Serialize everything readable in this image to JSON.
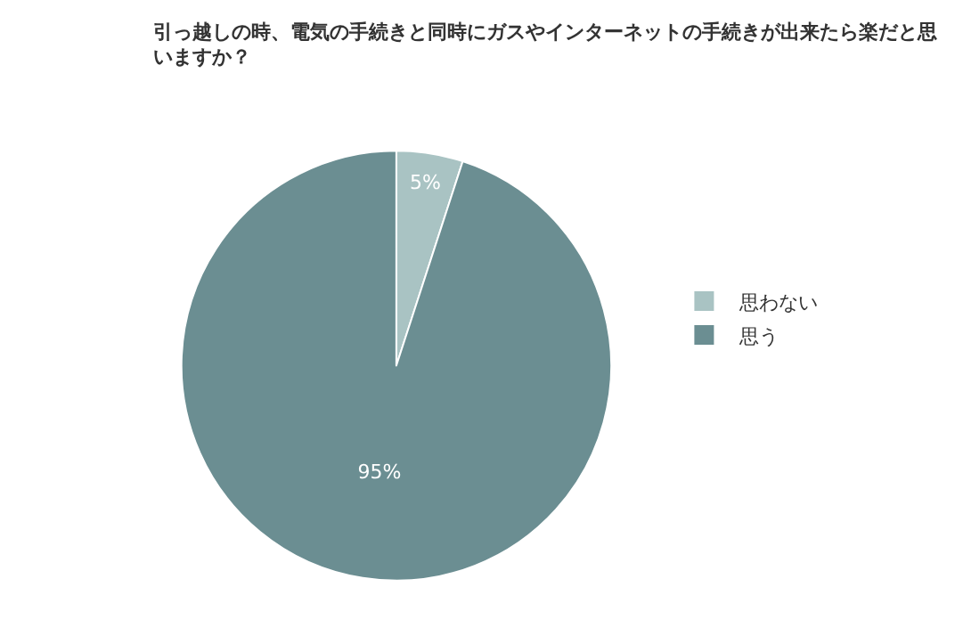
{
  "chart_data": {
    "type": "pie",
    "title": "引っ越しの時、電気の手続きと同時にガスやインターネットの手続きが出来たら楽だと思いますか？",
    "categories": [
      "思わない",
      "思う"
    ],
    "values": [
      5,
      95
    ],
    "colors": [
      "#a9c3c3",
      "#6b8e92"
    ],
    "value_labels": [
      "5%",
      "95%"
    ],
    "legend": "right"
  }
}
